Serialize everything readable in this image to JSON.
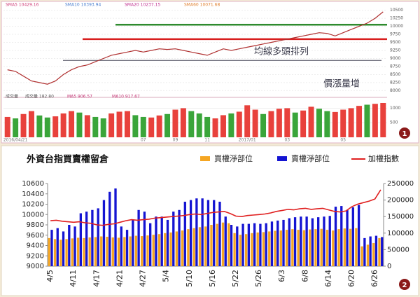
{
  "chart_data": [
    {
      "type": "line",
      "color": "#b03030",
      "grid": true,
      "categories": [
        null,
        "2016/04/21",
        null,
        null,
        null,
        null,
        null,
        null,
        null,
        null,
        null,
        null,
        null,
        null,
        null,
        null,
        null,
        "07",
        null,
        null,
        null,
        "09",
        null,
        null,
        null,
        "11",
        null,
        null,
        null,
        null,
        "2017/01",
        null,
        null,
        null,
        null,
        "03",
        null,
        null,
        null,
        null,
        null,
        null,
        "05",
        null,
        null,
        null,
        null,
        null
      ],
      "values": [
        8650,
        8600,
        8450,
        8300,
        8250,
        8200,
        8300,
        8500,
        8650,
        8750,
        8800,
        8900,
        9000,
        9100,
        9150,
        9200,
        9250,
        9200,
        9250,
        9300,
        9280,
        9300,
        9250,
        9200,
        9150,
        9100,
        9200,
        9300,
        9250,
        9300,
        9350,
        9400,
        9450,
        9500,
        9550,
        9600,
        9650,
        9700,
        9750,
        9800,
        9780,
        9700,
        9800,
        9900,
        10000,
        10100,
        10250,
        10450
      ],
      "ylim": [
        7900,
        10600
      ],
      "yticks": [
        8000,
        8250,
        8500,
        8750,
        9000,
        9250,
        9500,
        9750,
        10000,
        10250,
        10500
      ],
      "hlines": [
        {
          "value": 10050,
          "color": "#2e8b2e"
        },
        {
          "value": 9600,
          "color": "#d81e1e"
        },
        {
          "value": 8940,
          "color": "#445"
        }
      ],
      "ma_labels": [
        {
          "label": "SMA5 10429.16",
          "color": "#d0407a"
        },
        {
          "label": "SMA10 10393.94",
          "color": "#4a7fd0"
        },
        {
          "label": "SMA20 10237.15",
          "color": "#c03090"
        },
        {
          "label": "SMA60 10071.68",
          "color": "#e08030"
        }
      ],
      "annotations": [
        "均線多頭排列",
        "價漲量增"
      ],
      "volume": {
        "labels": [
          "成交量",
          "成交量 182.80",
          "MA5 906.57",
          "MA10 917.67"
        ],
        "ylim": [
          0,
          1300
        ],
        "yticks": [
          500,
          1000
        ],
        "values": [
          700,
          650,
          800,
          900,
          750,
          680,
          720,
          820,
          900,
          850,
          760,
          700,
          650,
          820,
          880,
          900,
          760,
          700,
          680,
          750,
          800,
          950,
          1000,
          900,
          820,
          700,
          650,
          760,
          820,
          880,
          1100,
          950,
          800,
          900,
          980,
          1000,
          850,
          920,
          1050,
          980,
          900,
          870,
          950,
          1000,
          1080,
          1120,
          1150,
          1180
        ],
        "colors": [
          "#e8413c",
          "#3aa53a",
          "#e8413c",
          "#e8413c",
          "#3aa53a",
          "#3aa53a",
          "#e8413c",
          "#e8413c",
          "#e8413c",
          "#3aa53a",
          "#e8413c",
          "#3aa53a",
          "#3aa53a",
          "#e8413c",
          "#e8413c",
          "#e8413c",
          "#3aa53a",
          "#3aa53a",
          "#e8413c",
          "#e8413c",
          "#3aa53a",
          "#e8413c",
          "#e8413c",
          "#3aa53a",
          "#3aa53a",
          "#3aa53a",
          "#e8413c",
          "#e8413c",
          "#3aa53a",
          "#e8413c",
          "#e8413c",
          "#e8413c",
          "#3aa53a",
          "#e8413c",
          "#e8413c",
          "#e8413c",
          "#3aa53a",
          "#e8413c",
          "#e8413c",
          "#3aa53a",
          "#3aa53a",
          "#e8413c",
          "#e8413c",
          "#e8413c",
          "#e8413c",
          "#3aa53a",
          "#e8413c",
          "#e8413c"
        ]
      }
    },
    {
      "type": "bar",
      "title": "外資台指買賣權留倉",
      "categories": [
        "4/5",
        null,
        null,
        null,
        "4/11",
        null,
        null,
        null,
        "4/17",
        null,
        null,
        null,
        "4/21",
        null,
        null,
        null,
        "4/27",
        null,
        null,
        null,
        "5/4",
        null,
        null,
        null,
        "5/10",
        null,
        null,
        null,
        "5/16",
        null,
        null,
        null,
        "5/22",
        null,
        null,
        null,
        "5/26",
        null,
        null,
        null,
        "6/3",
        null,
        null,
        null,
        "6/8",
        null,
        null,
        null,
        "6/14",
        null,
        null,
        null,
        "6/20",
        null,
        null,
        null,
        "6/26",
        null
      ],
      "ylim": [
        9000,
        10600
      ],
      "yticks": [
        9000,
        9200,
        9400,
        9600,
        9800,
        10000,
        10200,
        10400,
        10600
      ],
      "y2lim": [
        0,
        250000
      ],
      "y2ticks": [
        0,
        50000,
        100000,
        150000,
        200000,
        250000
      ],
      "series": [
        {
          "name": "買權淨部位",
          "color": "#f5a623",
          "axis": "y2",
          "values": [
            85000,
            82000,
            80000,
            82000,
            84000,
            86000,
            85000,
            87000,
            88000,
            90000,
            89000,
            87000,
            86000,
            88000,
            90000,
            92000,
            91000,
            93000,
            95000,
            97000,
            100000,
            102000,
            105000,
            108000,
            112000,
            115000,
            118000,
            120000,
            125000,
            128000,
            132000,
            130000,
            100000,
            95000,
            97000,
            100000,
            102000,
            103000,
            105000,
            107000,
            108000,
            110000,
            112000,
            110000,
            109000,
            111000,
            112000,
            113000,
            110000,
            108000,
            112000,
            114000,
            113000,
            115000,
            60000,
            65000,
            70000,
            85000
          ]
        },
        {
          "name": "賣權淨部位",
          "color": "#1414d2",
          "axis": "y2",
          "values": [
            110000,
            115000,
            105000,
            125000,
            120000,
            160000,
            165000,
            170000,
            175000,
            200000,
            225000,
            235000,
            120000,
            110000,
            140000,
            170000,
            165000,
            130000,
            150000,
            150000,
            140000,
            165000,
            170000,
            195000,
            200000,
            205000,
            205000,
            200000,
            200000,
            195000,
            150000,
            125000,
            120000,
            128000,
            128000,
            130000,
            128000,
            130000,
            135000,
            138000,
            140000,
            145000,
            148000,
            150000,
            150000,
            145000,
            148000,
            150000,
            152000,
            180000,
            182000,
            170000,
            178000,
            185000,
            85000,
            90000,
            92000,
            88000
          ]
        },
        {
          "name": "加權指數",
          "color": "#e02020",
          "type": "line",
          "values": [
            9880,
            9890,
            9870,
            9860,
            9850,
            9860,
            9840,
            9830,
            9800,
            9790,
            9810,
            9820,
            9850,
            9880,
            9900,
            9890,
            9900,
            9910,
            9930,
            9940,
            9950,
            9960,
            9970,
            9980,
            10000,
            10010,
            10000,
            10020,
            10040,
            10050,
            10060,
            10020,
            9970,
            9960,
            9980,
            9990,
            10000,
            10010,
            10030,
            10060,
            10080,
            10100,
            10090,
            10110,
            10120,
            10100,
            10110,
            10120,
            10090,
            10060,
            10050,
            10070,
            10150,
            10200,
            10230,
            10260,
            10300,
            10480
          ]
        }
      ]
    }
  ],
  "badges": [
    "1",
    "2"
  ]
}
